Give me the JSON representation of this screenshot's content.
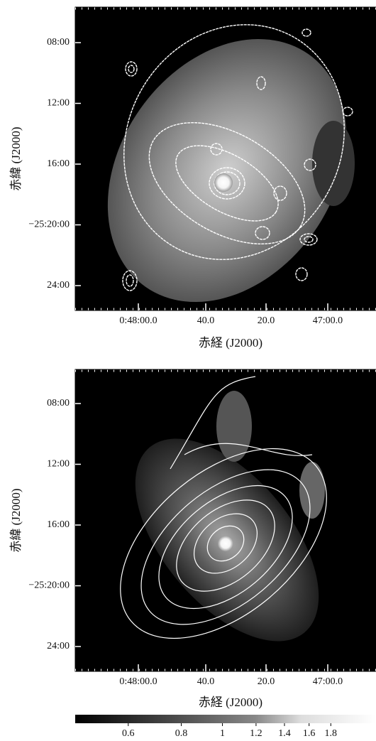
{
  "panels": [
    {
      "yticks": [
        "08:00",
        "12:00",
        "16:00",
        "−25:20:00",
        "24:00"
      ],
      "xticks": [
        "0:48:00.0",
        "40.0",
        "20.0",
        "47:00.0"
      ],
      "xlabel": "赤経 (J2000)",
      "ylabel": "赤緯 (J2000)"
    },
    {
      "yticks": [
        "08:00",
        "12:00",
        "16:00",
        "−25:20:00",
        "24:00"
      ],
      "xticks": [
        "0:48:00.0",
        "40.0",
        "20.0",
        "47:00.0"
      ],
      "xlabel": "赤経 (J2000)",
      "ylabel": "赤緯 (J2000)"
    }
  ],
  "colorbar": {
    "lim": [
      0.45,
      2.3
    ],
    "log": true,
    "ticks": [
      0.6,
      0.8,
      1,
      1.2,
      1.4,
      1.6,
      1.8
    ]
  }
}
